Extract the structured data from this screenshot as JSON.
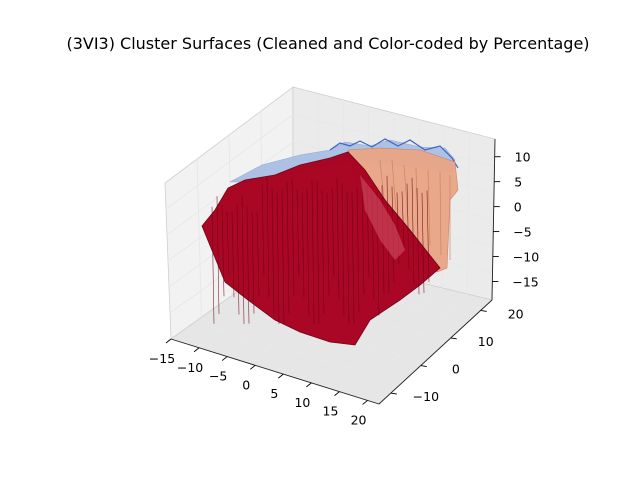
{
  "chart_data": {
    "type": "surface3d",
    "title": "(3VI3) Cluster Surfaces (Cleaned and Color-coded by Percentage)",
    "xlabel": "",
    "ylabel": "",
    "zlabel": "",
    "x_ticks": [
      "−15",
      "−10",
      "−5",
      "0",
      "5",
      "10",
      "15",
      "20"
    ],
    "y_ticks": [
      "−10",
      "0",
      "10",
      "20"
    ],
    "z_ticks": [
      "10",
      "5",
      "0",
      "−5",
      "−10",
      "−15"
    ],
    "xlim": [
      -15,
      22
    ],
    "ylim": [
      -15,
      25
    ],
    "zlim": [
      -18,
      13
    ],
    "grid": true,
    "colormap": "coolwarm",
    "surfaces": [
      {
        "role": "back-top",
        "color": "#9eb7e0",
        "z_approx": 10
      },
      {
        "role": "right-side",
        "color": "#e3997f",
        "z_approx": 0
      },
      {
        "role": "front-main",
        "color": "#b00026",
        "z_approx": -5
      }
    ]
  }
}
